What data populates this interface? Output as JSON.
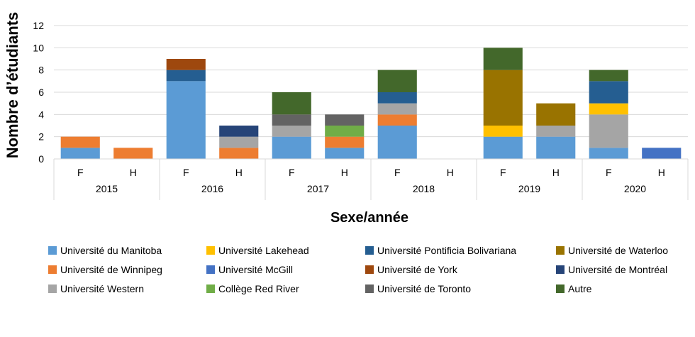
{
  "chart_data": {
    "type": "bar",
    "stacked": true,
    "title": "",
    "xlabel": "Sexe/année",
    "ylabel": "Nombre d’étudiants",
    "ylim": [
      0,
      12
    ],
    "yticks": [
      0,
      2,
      4,
      6,
      8,
      10,
      12
    ],
    "grid": true,
    "legend_position": "bottom",
    "groups": [
      {
        "year": "2015",
        "categories": [
          "F",
          "H"
        ]
      },
      {
        "year": "2016",
        "categories": [
          "F",
          "H"
        ]
      },
      {
        "year": "2017",
        "categories": [
          "F",
          "H"
        ]
      },
      {
        "year": "2018",
        "categories": [
          "F",
          "H"
        ]
      },
      {
        "year": "2019",
        "categories": [
          "F",
          "H"
        ]
      },
      {
        "year": "2020",
        "categories": [
          "F",
          "H"
        ]
      }
    ],
    "categories": [
      "2015 F",
      "2015 H",
      "2016 F",
      "2016 H",
      "2017 F",
      "2017 H",
      "2018 F",
      "2018 H",
      "2019 F",
      "2019 H",
      "2020 F",
      "2020 H"
    ],
    "series": [
      {
        "name": "Université du Manitoba",
        "color": "#5B9BD5",
        "values": [
          1,
          0,
          7,
          0,
          2,
          1,
          3,
          0,
          2,
          2,
          1,
          0
        ]
      },
      {
        "name": "Université de Winnipeg",
        "color": "#ED7D31",
        "values": [
          1,
          1,
          0,
          1,
          0,
          1,
          1,
          0,
          0,
          0,
          0,
          0
        ]
      },
      {
        "name": "Université Western",
        "color": "#A5A5A5",
        "values": [
          0,
          0,
          0,
          1,
          1,
          0,
          1,
          0,
          0,
          1,
          3,
          0
        ]
      },
      {
        "name": "Université Lakehead",
        "color": "#FFC000",
        "values": [
          0,
          0,
          0,
          0,
          0,
          0,
          0,
          0,
          1,
          0,
          1,
          0
        ]
      },
      {
        "name": "Université McGill",
        "color": "#4472C4",
        "values": [
          0,
          0,
          0,
          0,
          0,
          0,
          0,
          0,
          0,
          0,
          0,
          1
        ]
      },
      {
        "name": "Collège Red River",
        "color": "#70AD47",
        "values": [
          0,
          0,
          0,
          0,
          0,
          1,
          0,
          0,
          0,
          0,
          0,
          0
        ]
      },
      {
        "name": "Université Pontificia Bolivariana",
        "color": "#255E91",
        "values": [
          0,
          0,
          1,
          0,
          0,
          0,
          1,
          0,
          0,
          0,
          2,
          0
        ]
      },
      {
        "name": "Université de York",
        "color": "#9E480E",
        "values": [
          0,
          0,
          1,
          0,
          0,
          0,
          0,
          0,
          0,
          0,
          0,
          0
        ]
      },
      {
        "name": "Université de Toronto",
        "color": "#636363",
        "values": [
          0,
          0,
          0,
          0,
          1,
          1,
          0,
          0,
          0,
          0,
          0,
          0
        ]
      },
      {
        "name": "Université de Waterloo",
        "color": "#997300",
        "values": [
          0,
          0,
          0,
          0,
          0,
          0,
          0,
          0,
          5,
          2,
          0,
          0
        ]
      },
      {
        "name": "Université de Montréal",
        "color": "#264478",
        "values": [
          0,
          0,
          0,
          1,
          0,
          0,
          0,
          0,
          0,
          0,
          0,
          0
        ]
      },
      {
        "name": "Autre",
        "color": "#43682B",
        "values": [
          0,
          0,
          0,
          0,
          2,
          0,
          2,
          0,
          2,
          0,
          1,
          0
        ]
      }
    ]
  }
}
